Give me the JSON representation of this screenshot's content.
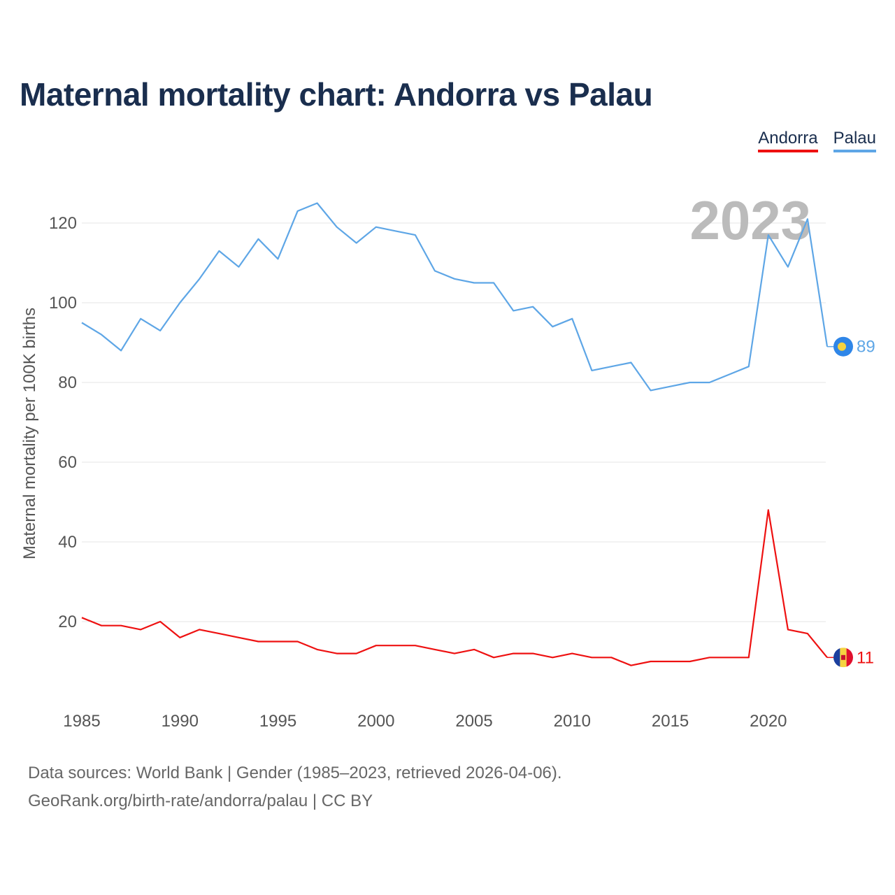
{
  "title": "Maternal mortality chart: Andorra vs Palau",
  "legend": {
    "andorra": "Andorra",
    "palau": "Palau"
  },
  "footer": {
    "line1": "Data sources: World Bank | Gender (1985–2023, retrieved 2026-04-06).",
    "line2": "GeoRank.org/birth-rate/andorra/palau | CC BY"
  },
  "chart_data": {
    "type": "line",
    "title": "Maternal mortality chart: Andorra vs Palau",
    "xlabel": "",
    "ylabel": "Maternal mortality per 100K births",
    "xlim": [
      1985,
      2023
    ],
    "ylim": [
      0,
      130
    ],
    "xticks": [
      1985,
      1990,
      1995,
      2000,
      2005,
      2010,
      2015,
      2020
    ],
    "yticks": [
      20,
      40,
      60,
      80,
      100,
      120
    ],
    "grid": true,
    "year_label": "2023",
    "x": [
      1985,
      1986,
      1987,
      1988,
      1989,
      1990,
      1991,
      1992,
      1993,
      1994,
      1995,
      1996,
      1997,
      1998,
      1999,
      2000,
      2001,
      2002,
      2003,
      2004,
      2005,
      2006,
      2007,
      2008,
      2009,
      2010,
      2011,
      2012,
      2013,
      2014,
      2015,
      2016,
      2017,
      2018,
      2019,
      2020,
      2021,
      2022,
      2023
    ],
    "series": [
      {
        "name": "Andorra",
        "color": "#ee1111",
        "end_label": "11",
        "values": [
          21,
          19,
          19,
          18,
          20,
          16,
          18,
          17,
          16,
          15,
          15,
          15,
          13,
          12,
          12,
          14,
          14,
          14,
          13,
          12,
          13,
          11,
          12,
          12,
          11,
          12,
          11,
          11,
          9,
          10,
          10,
          10,
          11,
          11,
          11,
          48,
          18,
          17,
          11
        ]
      },
      {
        "name": "Palau",
        "color": "#5ea6e6",
        "end_label": "89",
        "values": [
          95,
          92,
          88,
          96,
          93,
          100,
          106,
          113,
          109,
          116,
          111,
          123,
          125,
          119,
          115,
          119,
          118,
          117,
          108,
          106,
          105,
          105,
          98,
          99,
          94,
          96,
          83,
          84,
          85,
          78,
          79,
          80,
          80,
          82,
          84,
          117,
          109,
          121,
          89
        ]
      }
    ]
  }
}
